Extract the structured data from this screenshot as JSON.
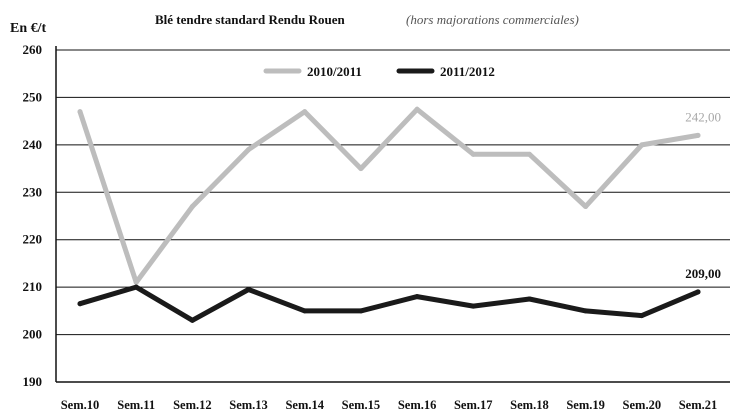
{
  "chart_data": {
    "type": "line",
    "title": "Blé tendre standard Rendu Rouen",
    "subtitle": "(hors majorations commerciales)",
    "ylabel": "En €/t",
    "xlabel": "",
    "ylim": [
      190,
      260
    ],
    "yticks": [
      190,
      200,
      210,
      220,
      230,
      240,
      250,
      260
    ],
    "grid": true,
    "legend_position": "top-center",
    "categories": [
      "Sem.10",
      "Sem.11",
      "Sem.12",
      "Sem.13",
      "Sem.14",
      "Sem.15",
      "Sem.16",
      "Sem.17",
      "Sem.18",
      "Sem.19",
      "Sem.20",
      "Sem.21"
    ],
    "series": [
      {
        "name": "2010/2011",
        "color": "#bdbdbd",
        "values": [
          247,
          211,
          227,
          239,
          247,
          235,
          247.5,
          238,
          238,
          227,
          240,
          242
        ],
        "end_label": "242,00"
      },
      {
        "name": "2011/2012",
        "color": "#1a1a1a",
        "values": [
          206.5,
          210,
          203,
          209.5,
          205,
          205,
          208,
          206,
          207.5,
          205,
          204,
          209
        ],
        "end_label": "209,00"
      }
    ]
  }
}
